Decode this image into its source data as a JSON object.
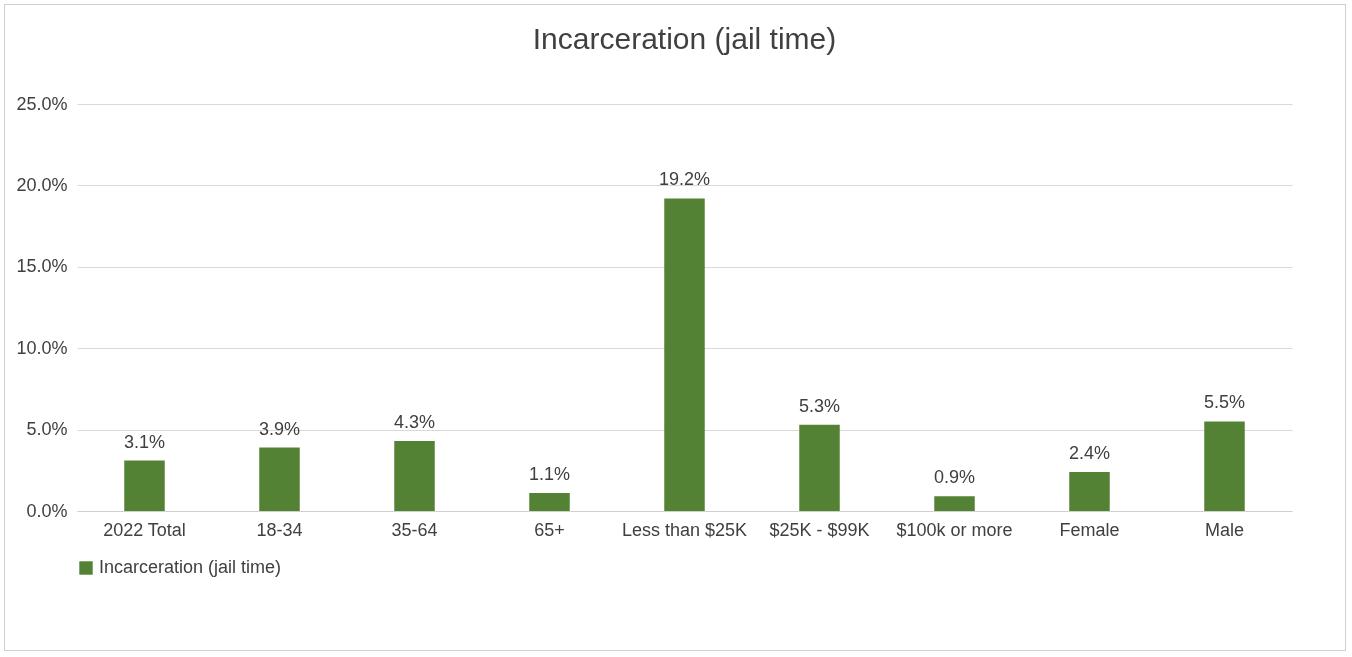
{
  "chart_data": {
    "type": "bar",
    "title": "Incarceration (jail time)",
    "categories": [
      "2022 Total",
      "18-34",
      "35-64",
      "65+",
      "Less than $25K",
      "$25K - $99K",
      "$100k or more",
      "Female",
      "Male"
    ],
    "series": [
      {
        "name": "Incarceration (jail time)",
        "color": "#548235",
        "values": [
          3.1,
          3.9,
          4.3,
          1.1,
          19.2,
          5.3,
          0.9,
          2.4,
          5.5
        ],
        "value_labels": [
          "3.1%",
          "3.9%",
          "4.3%",
          "1.1%",
          "19.2%",
          "5.3%",
          "0.9%",
          "2.4%",
          "5.5%"
        ]
      }
    ],
    "ylim": [
      0,
      25
    ],
    "yticks": [
      {
        "value": 0,
        "label": "0.0%"
      },
      {
        "value": 5,
        "label": "5.0%"
      },
      {
        "value": 10,
        "label": "10.0%"
      },
      {
        "value": 15,
        "label": "15.0%"
      },
      {
        "value": 20,
        "label": "20.0%"
      },
      {
        "value": 25,
        "label": "25.0%"
      }
    ],
    "grid": "y",
    "legend": "bottom"
  }
}
